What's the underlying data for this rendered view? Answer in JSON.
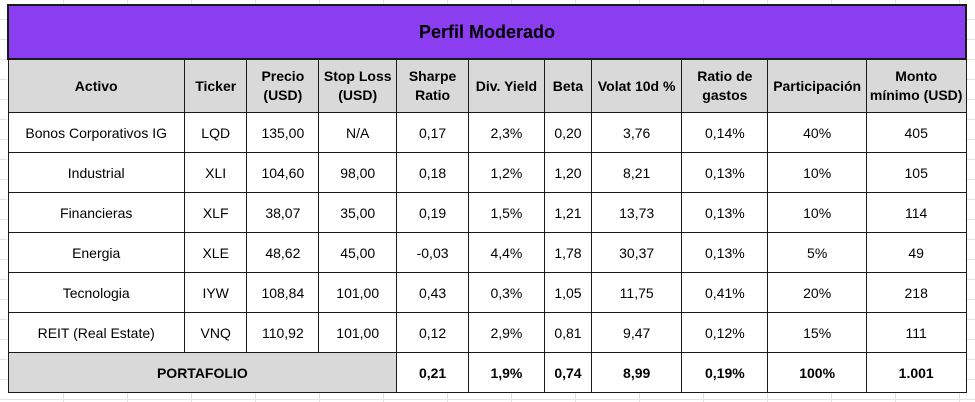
{
  "title": "Perfil Moderado",
  "headers": [
    "Activo",
    "Ticker",
    "Precio (USD)",
    "Stop Loss (USD)",
    "Sharpe Ratio",
    "Div. Yield",
    "Beta",
    "Volat 10d %",
    "Ratio de gastos",
    "Participación",
    "Monto mínimo (USD)"
  ],
  "rows": [
    [
      "Bonos Corporativos IG",
      "LQD",
      "135,00",
      "N/A",
      "0,17",
      "2,3%",
      "0,20",
      "3,76",
      "0,14%",
      "40%",
      "405"
    ],
    [
      "Industrial",
      "XLI",
      "104,60",
      "98,00",
      "0,18",
      "1,2%",
      "1,20",
      "8,21",
      "0,13%",
      "10%",
      "105"
    ],
    [
      "Financieras",
      "XLF",
      "38,07",
      "35,00",
      "0,19",
      "1,5%",
      "1,21",
      "13,73",
      "0,13%",
      "10%",
      "114"
    ],
    [
      "Energia",
      "XLE",
      "48,62",
      "45,00",
      "-0,03",
      "4,4%",
      "1,78",
      "30,37",
      "0,13%",
      "5%",
      "49"
    ],
    [
      "Tecnologia",
      "IYW",
      "108,84",
      "101,00",
      "0,43",
      "0,3%",
      "1,05",
      "11,75",
      "0,41%",
      "20%",
      "218"
    ],
    [
      "REIT (Real Estate)",
      "VNQ",
      "110,92",
      "101,00",
      "0,12",
      "2,9%",
      "0,81",
      "9,47",
      "0,12%",
      "15%",
      "111"
    ]
  ],
  "total": {
    "label": "PORTAFOLIO",
    "values": [
      "0,21",
      "1,9%",
      "0,74",
      "8,99",
      "0,19%",
      "100%",
      "1.001"
    ]
  },
  "colors": {
    "title_background": "#8b3df0",
    "header_background": "#d9d9d9",
    "total_label_background": "#d9d9d9",
    "border": "#1a1a1a"
  }
}
